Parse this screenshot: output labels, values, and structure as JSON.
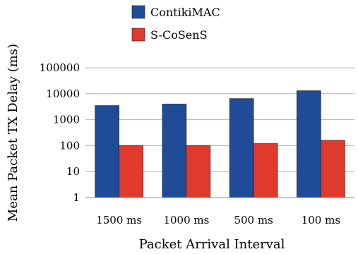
{
  "chart_data": {
    "type": "bar",
    "categories": [
      "1500 ms",
      "1000 ms",
      "500 ms",
      "100 ms"
    ],
    "series": [
      {
        "name": "ContikiMAC",
        "values": [
          3500,
          4000,
          6500,
          13000
        ],
        "color": "#1f4b99"
      },
      {
        "name": "S-CoSenS",
        "values": [
          100,
          100,
          120,
          160
        ],
        "color": "#e03a2c"
      }
    ],
    "title": "",
    "xlabel": "Packet Arrival Interval",
    "ylabel": "Mean Packet TX Delay (ms)",
    "yscale": "log",
    "ylim": [
      1,
      100000
    ],
    "yticks": [
      "1",
      "10",
      "100",
      "1000",
      "10000",
      "100000"
    ],
    "grid": true,
    "legend": "top-center"
  }
}
